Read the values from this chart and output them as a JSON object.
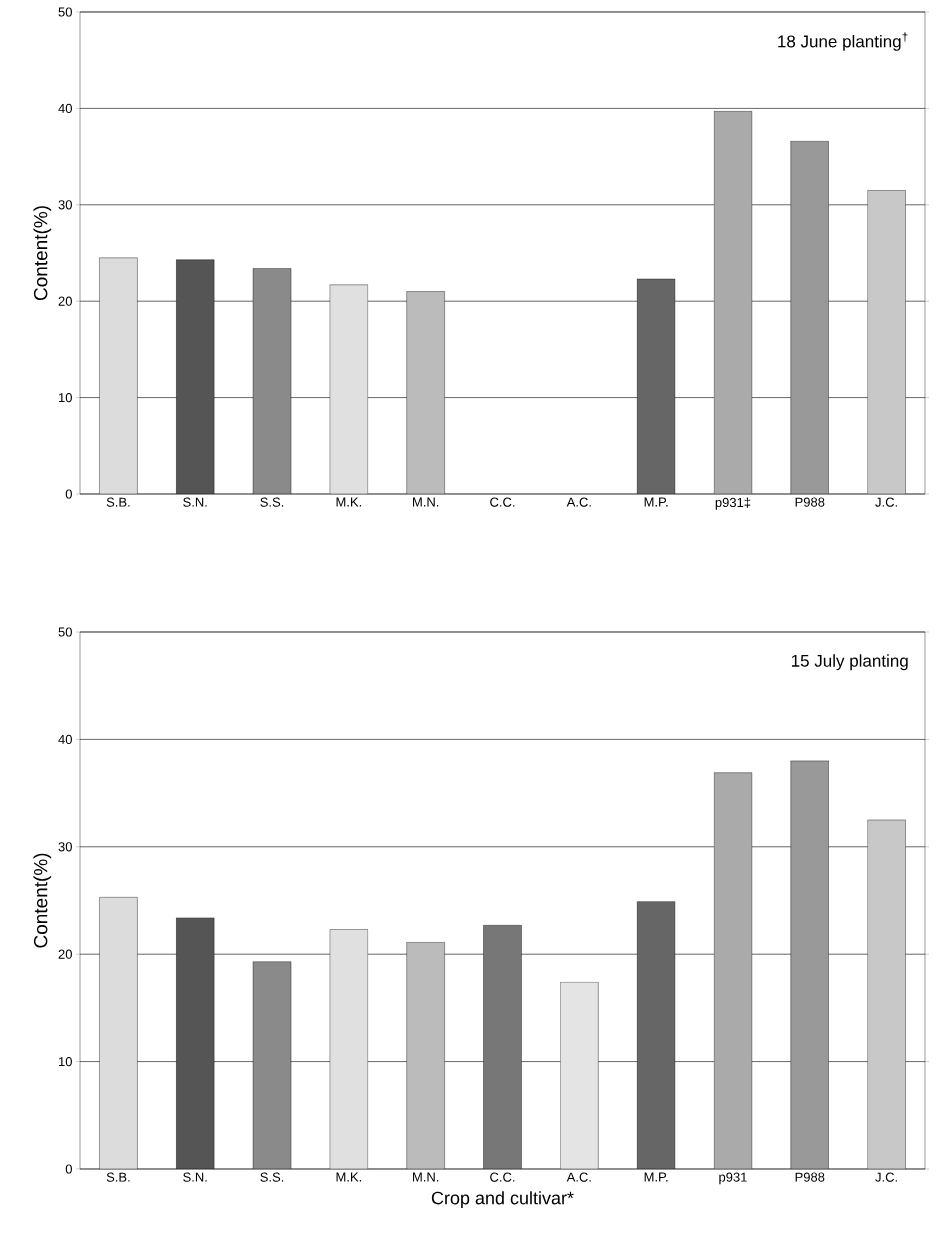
{
  "chart_data": [
    {
      "type": "bar",
      "ylabel": "Content(%)",
      "categories": [
        "S.B.",
        "S.N.",
        "S.S.",
        "M.K.",
        "M.N.",
        "C.C.",
        "A.C.",
        "M.P.",
        "p931‡",
        "P988",
        "J.C."
      ],
      "values": [
        24.5,
        24.3,
        23.4,
        21.7,
        21.0,
        null,
        null,
        22.3,
        39.7,
        36.6,
        31.5
      ],
      "colors": [
        "#dcdcdc",
        "#555555",
        "#8a8a8a",
        "#e0e0e0",
        "#bbbbbb",
        "#777777",
        "#e4e4e4",
        "#666666",
        "#aaaaaa",
        "#999999",
        "#c8c8c8"
      ],
      "ylim": [
        0,
        50
      ],
      "yticks": [
        0,
        10,
        20,
        30,
        40,
        50
      ],
      "grid": "y",
      "annotations": [
        "18 June planting$^{†}$"
      ]
    },
    {
      "type": "bar",
      "ylabel": "Content(%)",
      "xlabel": "Crop and cultivar*",
      "categories": [
        "S.B.",
        "S.N.",
        "S.S.",
        "M.K.",
        "M.N.",
        "C.C.",
        "A.C.",
        "M.P.",
        "p931",
        "P988",
        "J.C."
      ],
      "values": [
        25.3,
        23.4,
        19.3,
        22.3,
        21.1,
        22.7,
        17.4,
        24.9,
        36.9,
        38.0,
        32.5
      ],
      "colors": [
        "#dcdcdc",
        "#555555",
        "#8a8a8a",
        "#e0e0e0",
        "#bbbbbb",
        "#777777",
        "#e4e4e4",
        "#666666",
        "#aaaaaa",
        "#999999",
        "#c8c8c8"
      ],
      "ylim": [
        0,
        50
      ],
      "yticks": [
        0,
        10,
        20,
        30,
        40,
        50
      ],
      "grid": "y",
      "annotations": [
        "15 July planting"
      ]
    }
  ]
}
